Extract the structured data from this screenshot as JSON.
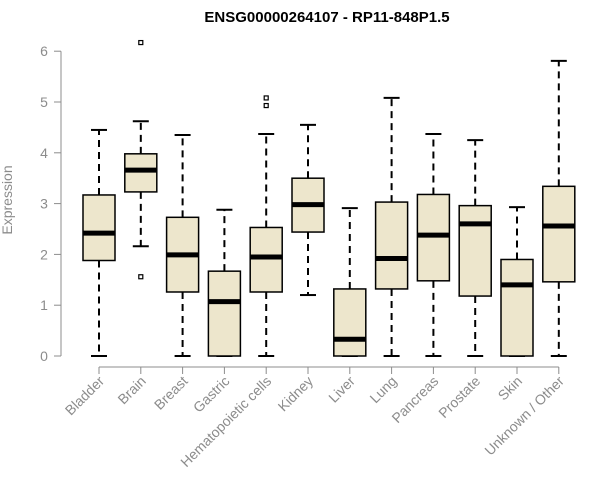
{
  "chart_data": {
    "type": "box",
    "title": "ENSG00000264107 - RP11-848P1.5",
    "xlabel": "",
    "ylabel": "Expression",
    "ylim": [
      0,
      6.2
    ],
    "yticks": [
      0,
      1,
      2,
      3,
      4,
      5,
      6
    ],
    "grid": false,
    "box_fill": "#ede6cc",
    "categories": [
      "Bladder",
      "Brain",
      "Breast",
      "Gastric",
      "Hematopoietic cells",
      "Kidney",
      "Liver",
      "Lung",
      "Pancreas",
      "Prostate",
      "Skin",
      "Unknown / Other"
    ],
    "boxes": [
      {
        "min": 0,
        "q1": 1.88,
        "median": 2.42,
        "q3": 3.17,
        "max": 4.45,
        "outliers": []
      },
      {
        "min": 2.16,
        "q1": 3.23,
        "median": 3.66,
        "q3": 3.98,
        "max": 4.62,
        "outliers": [
          6.17,
          1.56
        ]
      },
      {
        "min": 0,
        "q1": 1.26,
        "median": 1.99,
        "q3": 2.73,
        "max": 4.35,
        "outliers": []
      },
      {
        "min": 0,
        "q1": 0,
        "median": 1.07,
        "q3": 1.67,
        "max": 2.88,
        "outliers": []
      },
      {
        "min": 0,
        "q1": 1.26,
        "median": 1.95,
        "q3": 2.53,
        "max": 4.37,
        "outliers": [
          5.08,
          4.93
        ]
      },
      {
        "min": 1.2,
        "q1": 2.44,
        "median": 2.98,
        "q3": 3.5,
        "max": 4.55,
        "outliers": []
      },
      {
        "min": 0,
        "q1": 0,
        "median": 0.33,
        "q3": 1.32,
        "max": 2.91,
        "outliers": []
      },
      {
        "min": 0,
        "q1": 1.32,
        "median": 1.92,
        "q3": 3.03,
        "max": 5.08,
        "outliers": []
      },
      {
        "min": 0,
        "q1": 1.48,
        "median": 2.38,
        "q3": 3.18,
        "max": 4.37,
        "outliers": []
      },
      {
        "min": 0,
        "q1": 1.18,
        "median": 2.6,
        "q3": 2.96,
        "max": 4.25,
        "outliers": []
      },
      {
        "min": 0,
        "q1": 0,
        "median": 1.4,
        "q3": 1.9,
        "max": 2.93,
        "outliers": []
      },
      {
        "min": 0,
        "q1": 1.46,
        "median": 2.56,
        "q3": 3.34,
        "max": 5.81,
        "outliers": []
      }
    ]
  }
}
